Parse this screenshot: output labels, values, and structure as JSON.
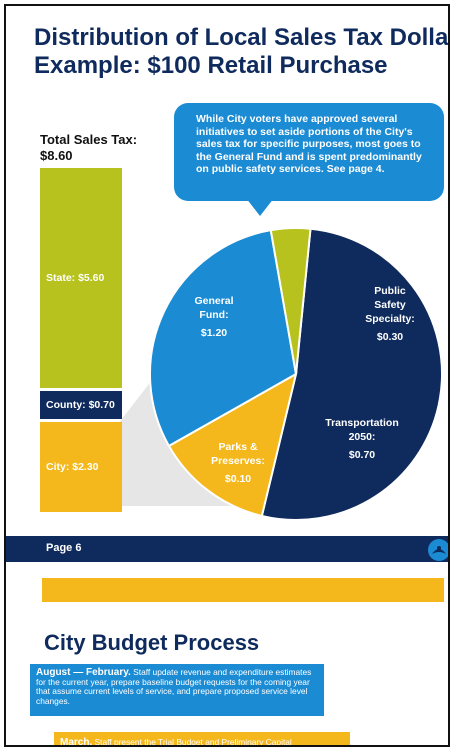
{
  "title_lines": [
    "Distribution of Local Sales Tax Dollars",
    "Example: $100 Retail Purchase"
  ],
  "total_label": [
    "Total Sales Tax:",
    "$8.60"
  ],
  "callout": "While City voters have approved several initiatives to set aside portions of the City's sales tax for specific purposes, most goes to the General Fund and is spent predominantly on public safety services. See page 4.",
  "colors": {
    "navy": "#0f2a5c",
    "blue": "#1b8bd3",
    "gold": "#f5b81c",
    "lime": "#b7c21e",
    "connector": "#e6e6e6"
  },
  "chart_data": [
    {
      "type": "bar",
      "stacked": true,
      "orientation": "vertical",
      "categories": [
        "Total Sales Tax"
      ],
      "series": [
        {
          "name": "State",
          "label": "State: $5.60",
          "value": 5.6
        },
        {
          "name": "County",
          "label": "County: $0.70",
          "value": 0.7
        },
        {
          "name": "City",
          "label": "City: $2.30",
          "value": 2.3
        }
      ],
      "total": 8.6
    },
    {
      "type": "pie",
      "slices": [
        {
          "label_lines": [
            "General",
            "Fund:",
            "$1.20"
          ],
          "value": 1.2,
          "color": "#0f2a5c"
        },
        {
          "label_lines": [
            "Public",
            "Safety",
            "Specialty:",
            "$0.30"
          ],
          "value": 0.3,
          "color": "#f5b81c"
        },
        {
          "label_lines": [
            "Transportation",
            "2050:",
            "$0.70"
          ],
          "value": 0.7,
          "color": "#1b8bd3"
        },
        {
          "label_lines": [
            "Parks &",
            "Preserves:",
            "$0.10"
          ],
          "value": 0.1,
          "color": "#b7c21e"
        }
      ],
      "total": 2.3
    }
  ],
  "footer": {
    "page_label": "Page 6"
  },
  "next_section": {
    "title": "City Budget Process",
    "item1_heading": "August — February.",
    "item1_text": "Staff update revenue and expenditure estimates for the current year, prepare baseline budget requests for the coming year that assume current levels of service, and prepare proposed service level changes.",
    "item2_heading": "March.",
    "item2_text": "Staff present the Trial Budget and Preliminary Capital"
  }
}
